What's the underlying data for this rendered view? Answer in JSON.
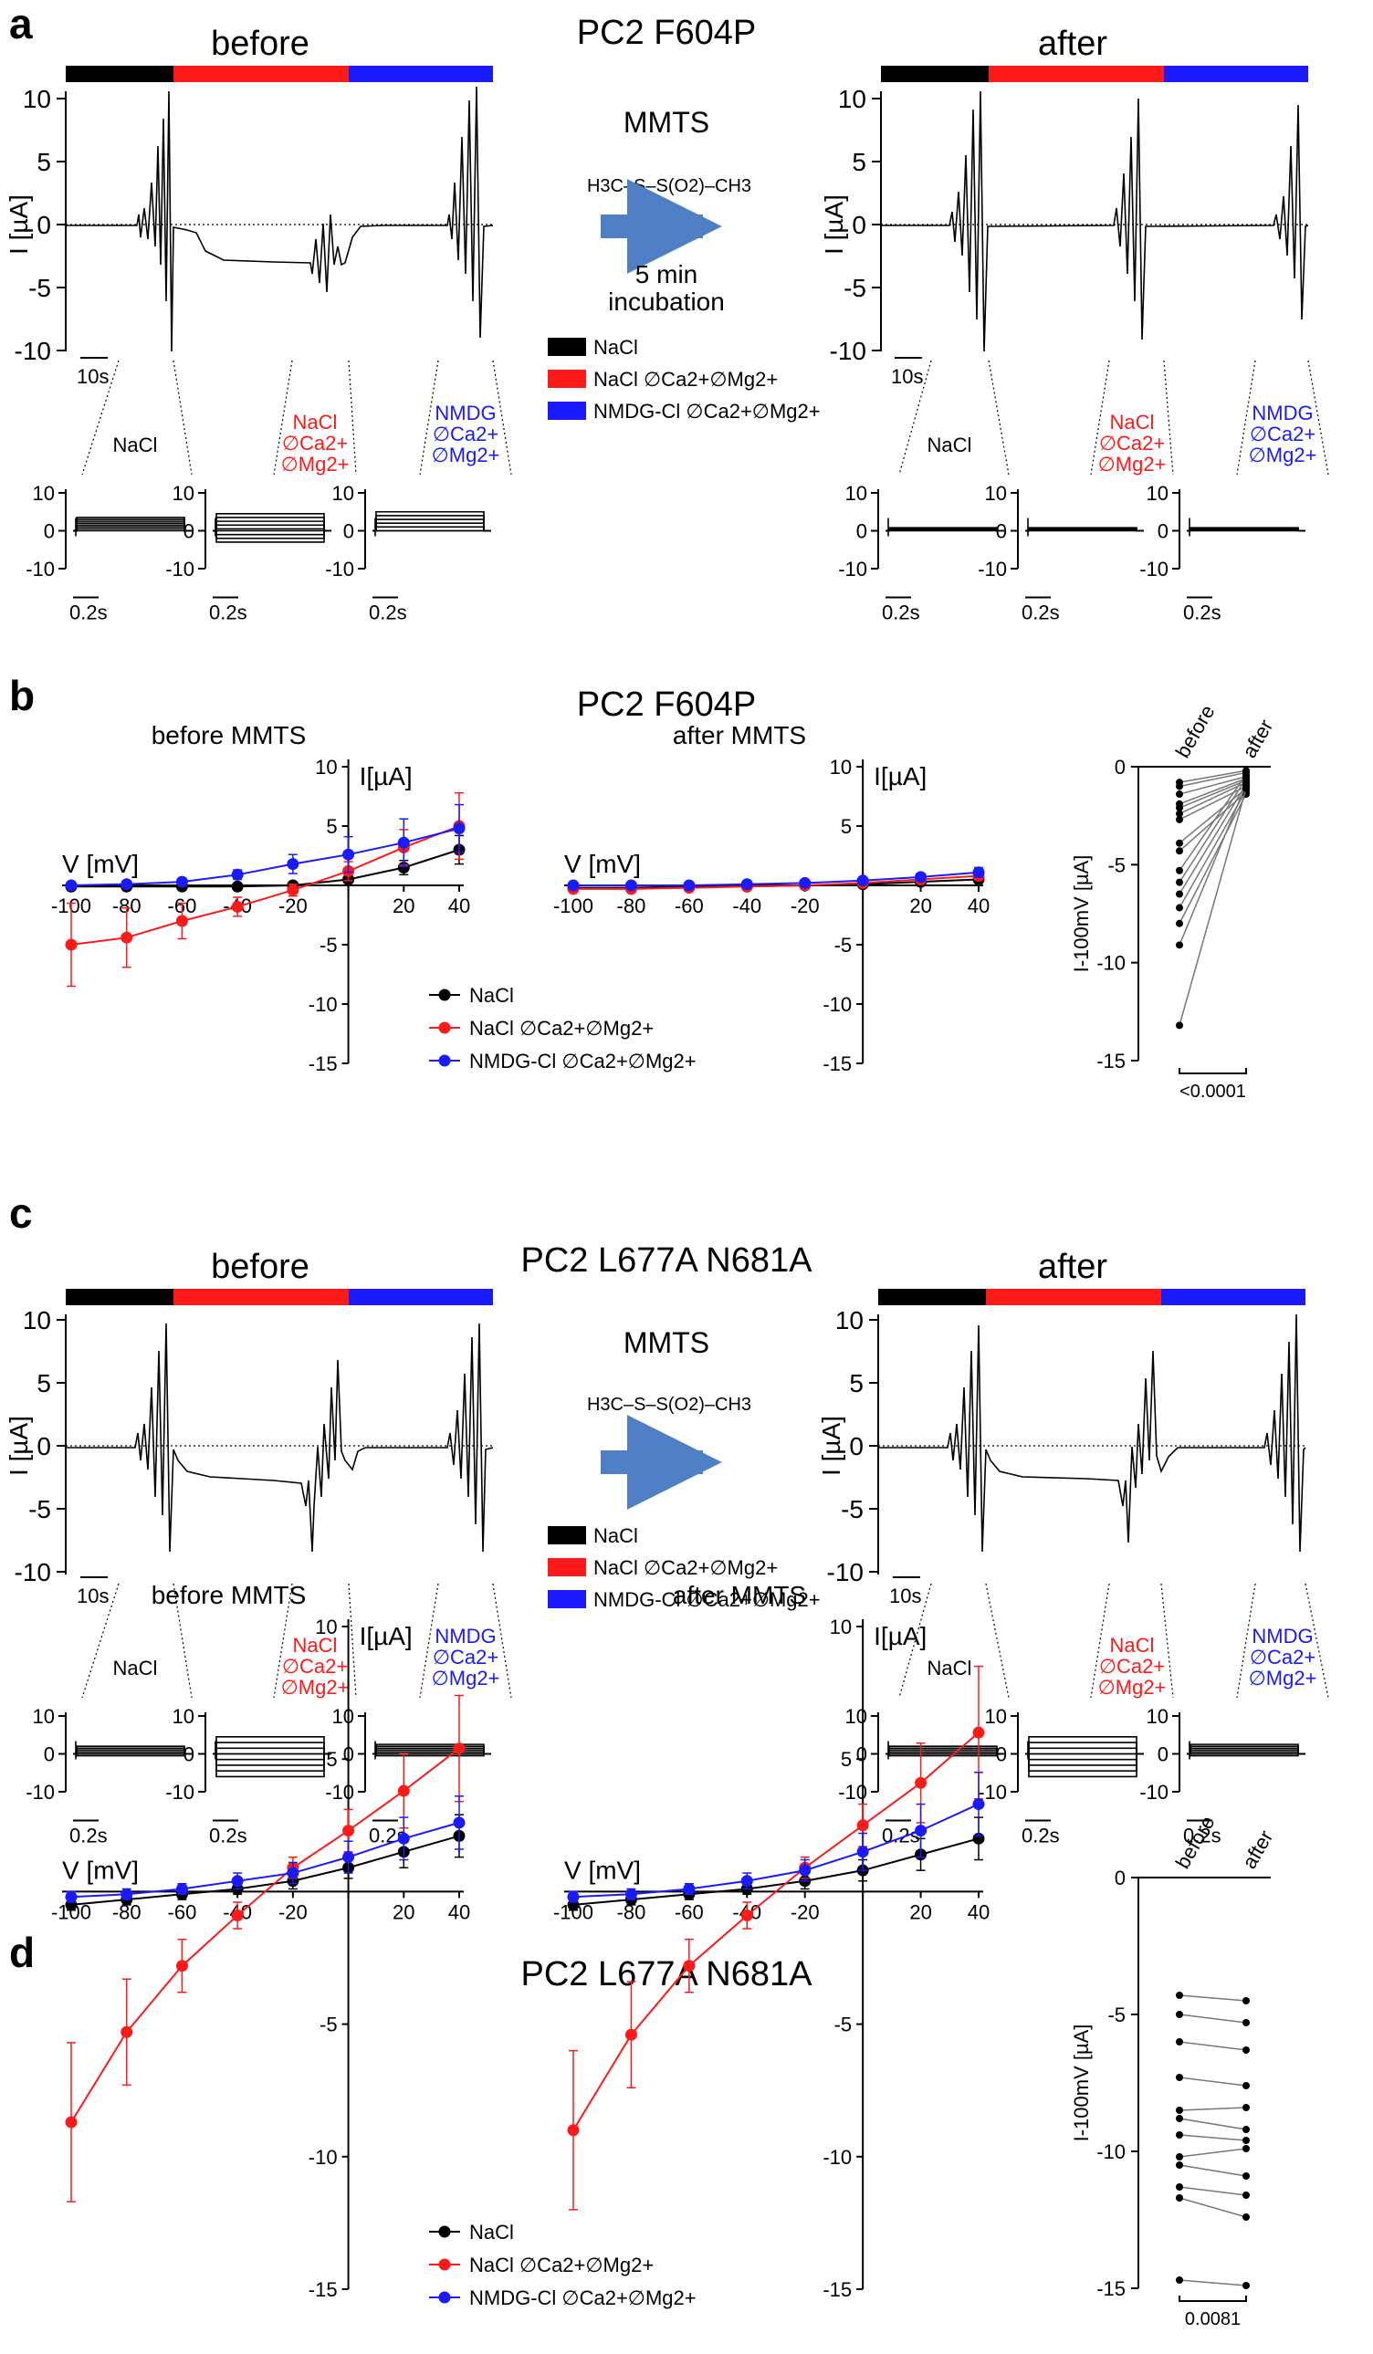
{
  "labels": {
    "panel_a": "a",
    "panel_b": "b",
    "panel_c": "c",
    "panel_d": "d",
    "title_a": "PC2 F604P",
    "title_b": "PC2 F604P",
    "title_c": "PC2 L677A N681A",
    "title_d": "PC2 L677A N681A",
    "before": "before",
    "after": "after",
    "before_mmts": "before MMTS",
    "after_mmts": "after MMTS",
    "mmts": "MMTS",
    "incubation_1": "5 min",
    "incubation_2": "incubation",
    "trace_ylabel": "I [µA]",
    "scale_10s": "10s",
    "scale_02s": "0.2s",
    "iv_xlabel": "V [mV]",
    "iv_ylabel": "I[µA]",
    "scatter_ylabel": "I-100mV [µA]",
    "nacl": "NaCl",
    "nacl_ca_1": "NaCl",
    "nacl_ca_2": "∅Ca2+",
    "nacl_ca_3": "∅Mg2+",
    "nmdg_1": "NMDG",
    "nmdg_2": "∅Ca2+",
    "nmdg_3": "∅Mg2+",
    "mmts_formula": "H3C–S–S(O2)–CH3"
  },
  "legend": {
    "nacl": "NaCl",
    "nacl_free": "NaCl ∅Ca2+∅Mg2+",
    "nmdg_free": "NMDG-Cl ∅Ca2+∅Mg2+"
  },
  "colors": {
    "nacl": "#000000",
    "nacl_free": "#ff1a1a",
    "nmdg_free": "#1a1aff",
    "arrow": "#4f7fc4"
  },
  "chart_data": [
    {
      "type": "line",
      "panel": "b",
      "title": "before MMTS",
      "xlabel": "V [mV]",
      "ylabel": "I[µA]",
      "xlim": [
        -100,
        40
      ],
      "ylim": [
        -15,
        10
      ],
      "x": [
        -100,
        -80,
        -60,
        -40,
        -20,
        0,
        20,
        40
      ],
      "series": [
        {
          "name": "NaCl",
          "values": [
            -0.1,
            -0.1,
            -0.1,
            -0.1,
            0,
            0.5,
            1.5,
            3.0
          ],
          "err": [
            0.1,
            0.1,
            0.1,
            0.1,
            0.1,
            0.3,
            0.6,
            1.2
          ]
        },
        {
          "name": "NaCl ∅Ca2+∅Mg2+",
          "values": [
            -5,
            -4.4,
            -3.0,
            -1.8,
            -0.4,
            1.2,
            3.2,
            5.0
          ],
          "err": [
            3.5,
            2.5,
            1.5,
            0.8,
            0.5,
            0.8,
            1.5,
            2.8
          ]
        },
        {
          "name": "NMDG-Cl ∅Ca2+∅Mg2+",
          "values": [
            0,
            0.1,
            0.3,
            0.9,
            1.8,
            2.6,
            3.6,
            4.8
          ],
          "err": [
            0.1,
            0.2,
            0.3,
            0.4,
            0.8,
            1.5,
            2.0,
            2.0
          ]
        }
      ]
    },
    {
      "type": "line",
      "panel": "b",
      "title": "after MMTS",
      "xlabel": "V [mV]",
      "ylabel": "I[µA]",
      "xlim": [
        -100,
        40
      ],
      "ylim": [
        -15,
        10
      ],
      "x": [
        -100,
        -80,
        -60,
        -40,
        -20,
        0,
        20,
        40
      ],
      "series": [
        {
          "name": "NaCl",
          "values": [
            -0.2,
            -0.2,
            -0.1,
            -0.1,
            0,
            0.1,
            0.3,
            0.5
          ],
          "err": [
            0.1,
            0.1,
            0.1,
            0.1,
            0.1,
            0.1,
            0.2,
            0.3
          ]
        },
        {
          "name": "NaCl ∅Ca2+∅Mg2+",
          "values": [
            -0.3,
            -0.3,
            -0.2,
            -0.1,
            0,
            0.2,
            0.5,
            0.8
          ],
          "err": [
            0.1,
            0.1,
            0.1,
            0.1,
            0.1,
            0.1,
            0.2,
            0.3
          ]
        },
        {
          "name": "NMDG-Cl ∅Ca2+∅Mg2+",
          "values": [
            0,
            0,
            0,
            0.1,
            0.2,
            0.4,
            0.7,
            1.1
          ],
          "err": [
            0.1,
            0.1,
            0.1,
            0.1,
            0.1,
            0.2,
            0.3,
            0.4
          ]
        }
      ]
    },
    {
      "type": "scatter",
      "panel": "b",
      "ylabel": "I-100mV [µA]",
      "categories": [
        "before",
        "after"
      ],
      "ylim": [
        -15,
        0
      ],
      "p_value": "<0.0001",
      "pairs": [
        [
          -0.8,
          -0.2
        ],
        [
          -1.0,
          -0.3
        ],
        [
          -1.4,
          -0.5
        ],
        [
          -1.9,
          -0.6
        ],
        [
          -2.1,
          -0.7
        ],
        [
          -2.4,
          -0.8
        ],
        [
          -2.7,
          -1.0
        ],
        [
          -3.9,
          -1.1
        ],
        [
          -4.3,
          -1.3
        ],
        [
          -5.3,
          -0.4
        ],
        [
          -5.9,
          -0.6
        ],
        [
          -6.5,
          -0.9
        ],
        [
          -7.2,
          -1.2
        ],
        [
          -8.0,
          -1.4
        ],
        [
          -9.1,
          -0.9
        ],
        [
          -13.2,
          -1.1
        ]
      ]
    },
    {
      "type": "line",
      "panel": "d",
      "title": "before MMTS",
      "xlabel": "V [mV]",
      "ylabel": "I[µA]",
      "xlim": [
        -100,
        40
      ],
      "ylim": [
        -15,
        10
      ],
      "x": [
        -100,
        -80,
        -60,
        -40,
        -20,
        0,
        20,
        40
      ],
      "series": [
        {
          "name": "NaCl",
          "values": [
            -0.5,
            -0.3,
            -0.1,
            0.1,
            0.4,
            0.9,
            1.5,
            2.1
          ],
          "err": [
            0.2,
            0.2,
            0.2,
            0.2,
            0.3,
            0.4,
            0.6,
            0.8
          ]
        },
        {
          "name": "NaCl ∅Ca2+∅Mg2+",
          "values": [
            -8.7,
            -5.3,
            -2.8,
            -0.9,
            0.9,
            2.3,
            3.8,
            5.4
          ],
          "err": [
            3.0,
            2.0,
            1.0,
            0.5,
            0.4,
            0.8,
            1.4,
            2.0
          ]
        },
        {
          "name": "NMDG-Cl ∅Ca2+∅Mg2+",
          "values": [
            -0.2,
            -0.1,
            0.1,
            0.4,
            0.7,
            1.3,
            2.0,
            2.6
          ],
          "err": [
            0.2,
            0.2,
            0.2,
            0.3,
            0.4,
            0.6,
            0.8,
            1.0
          ]
        }
      ]
    },
    {
      "type": "line",
      "panel": "d",
      "title": "after MMTS",
      "xlabel": "V [mV]",
      "ylabel": "I[µA]",
      "xlim": [
        -100,
        40
      ],
      "ylim": [
        -15,
        10
      ],
      "x": [
        -100,
        -80,
        -60,
        -40,
        -20,
        0,
        20,
        40
      ],
      "series": [
        {
          "name": "NaCl",
          "values": [
            -0.5,
            -0.3,
            -0.1,
            0.1,
            0.4,
            0.8,
            1.4,
            2.0
          ],
          "err": [
            0.2,
            0.2,
            0.2,
            0.2,
            0.3,
            0.4,
            0.6,
            0.8
          ]
        },
        {
          "name": "NaCl ∅Ca2+∅Mg2+",
          "values": [
            -9.0,
            -5.4,
            -2.8,
            -0.9,
            0.9,
            2.5,
            4.1,
            6.0
          ],
          "err": [
            3.0,
            2.0,
            1.0,
            0.5,
            0.4,
            0.8,
            1.5,
            2.5
          ]
        },
        {
          "name": "NMDG-Cl ∅Ca2+∅Mg2+",
          "values": [
            -0.2,
            -0.1,
            0.1,
            0.4,
            0.8,
            1.5,
            2.3,
            3.3
          ],
          "err": [
            0.2,
            0.2,
            0.2,
            0.3,
            0.4,
            0.7,
            1.0,
            1.2
          ]
        }
      ]
    },
    {
      "type": "scatter",
      "panel": "d",
      "ylabel": "I-100mV [µA]",
      "categories": [
        "before",
        "after"
      ],
      "ylim": [
        -15,
        0
      ],
      "p_value": "0.0081",
      "pairs": [
        [
          -4.3,
          -4.5
        ],
        [
          -5.0,
          -5.3
        ],
        [
          -6.0,
          -6.3
        ],
        [
          -7.3,
          -7.6
        ],
        [
          -8.5,
          -8.4
        ],
        [
          -8.8,
          -9.2
        ],
        [
          -9.4,
          -9.6
        ],
        [
          -10.2,
          -9.9
        ],
        [
          -10.5,
          -10.9
        ],
        [
          -11.3,
          -11.6
        ],
        [
          -11.7,
          -12.4
        ],
        [
          -14.7,
          -14.9
        ]
      ]
    }
  ]
}
